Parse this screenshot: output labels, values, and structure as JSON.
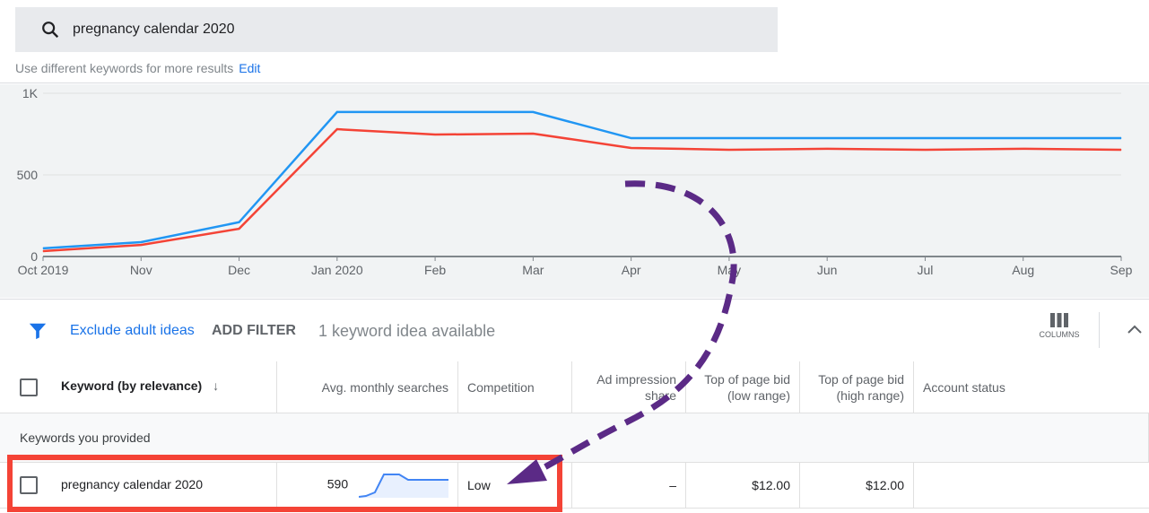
{
  "search": {
    "query": "pregnancy calendar 2020",
    "hint": "Use different keywords for more results",
    "edit_label": "Edit"
  },
  "filter": {
    "exclude_label": "Exclude adult ideas",
    "add_filter_label": "ADD FILTER",
    "count_label": "1 keyword idea available",
    "columns_label": "COLUMNS"
  },
  "table": {
    "headers": [
      "Keyword (by relevance)",
      "Avg. monthly searches",
      "Competition",
      "Ad impression share",
      "Top of page bid (low range)",
      "Top of page bid (high range)",
      "Account status"
    ],
    "group_label": "Keywords you provided",
    "rows": [
      {
        "keyword": "pregnancy calendar 2020",
        "avg_searches": "590",
        "competition": "Low",
        "impression_share": "–",
        "bid_low": "$12.00",
        "bid_high": "$12.00",
        "account_status": ""
      }
    ]
  },
  "chart_data": {
    "type": "line",
    "x": [
      "Oct 2019",
      "Nov",
      "Dec",
      "Jan 2020",
      "Feb",
      "Mar",
      "Apr",
      "May",
      "Jun",
      "Jul",
      "Aug",
      "Sep"
    ],
    "y_ticks": [
      "0",
      "500",
      "1K"
    ],
    "ylim": [
      0,
      1000
    ],
    "grid": true,
    "series": [
      {
        "color": "#2196f3",
        "values": [
          50,
          88,
          210,
          885,
          885,
          885,
          725,
          725,
          725,
          725,
          725,
          725
        ]
      },
      {
        "color": "#f44336",
        "values": [
          33,
          71,
          170,
          780,
          747,
          753,
          665,
          654,
          660,
          654,
          660,
          654
        ]
      }
    ]
  },
  "colors": {
    "accent": "#1a73e8",
    "annotation_box": "#f44336",
    "annotation_arrow": "#5b2a86"
  }
}
